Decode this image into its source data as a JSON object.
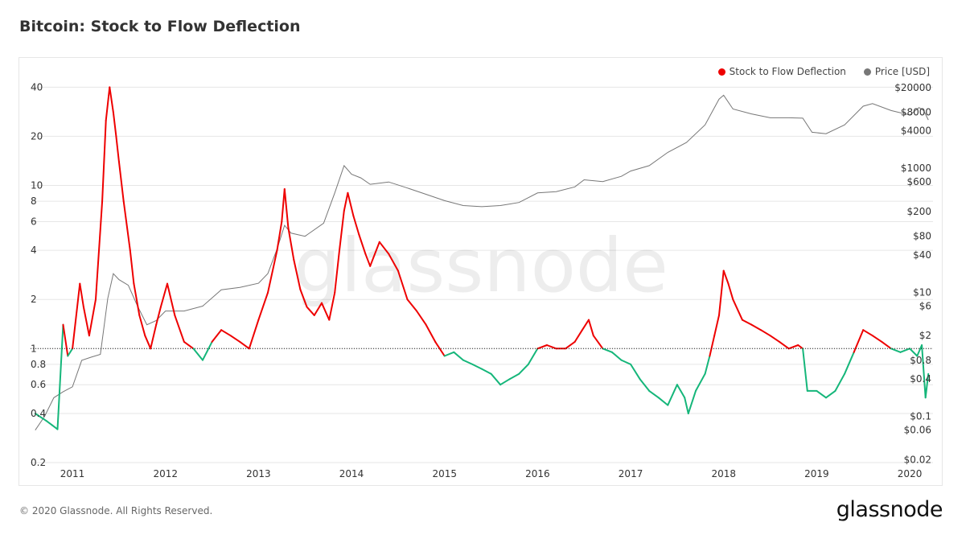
{
  "page": {
    "title": "Bitcoin: Stock to Flow Deflection",
    "footer": "© 2020 Glassnode. All Rights Reserved.",
    "logo": "glassnode",
    "watermark": "glassnode"
  },
  "legend": [
    {
      "label": "Stock to Flow Deflection",
      "color": "#ee0000"
    },
    {
      "label": "Price [USD]",
      "color": "#777777"
    }
  ],
  "chart_data": {
    "type": "line",
    "title": "Bitcoin: Stock to Flow Deflection",
    "x_ticks": [
      "2011",
      "2012",
      "2013",
      "2014",
      "2015",
      "2016",
      "2017",
      "2018",
      "2019",
      "2020"
    ],
    "y_left": {
      "scale": "log",
      "ticks": [
        "40",
        "20",
        "10",
        "8",
        "6",
        "4",
        "2",
        "1",
        "0.8",
        "0.6",
        "0.4",
        "0.2"
      ],
      "values": [
        40,
        20,
        10,
        8,
        6,
        4,
        2,
        1,
        0.8,
        0.6,
        0.4,
        0.2
      ]
    },
    "y_right": {
      "scale": "log",
      "ticks": [
        "$20000",
        "$8000",
        "$4000",
        "$1000",
        "$600",
        "$200",
        "$80",
        "$40",
        "$10",
        "$6",
        "$2",
        "$0.8",
        "$0.4",
        "$0.1",
        "$0.06",
        "$0.02"
      ],
      "values": [
        20000,
        8000,
        4000,
        1000,
        600,
        200,
        80,
        40,
        10,
        6,
        2,
        0.8,
        0.4,
        0.1,
        0.06,
        0.02
      ]
    },
    "reference_line": 1,
    "colors": {
      "above": "#ee0000",
      "below": "#15b67a",
      "price": "#777777",
      "grid": "#e6e6e6"
    },
    "series": [
      {
        "name": "Stock to Flow Deflection",
        "x": [
          2010.6,
          2010.72,
          2010.78,
          2010.84,
          2010.9,
          2010.95,
          2011.0,
          2011.08,
          2011.12,
          2011.18,
          2011.25,
          2011.32,
          2011.36,
          2011.4,
          2011.44,
          2011.47,
          2011.5,
          2011.55,
          2011.62,
          2011.66,
          2011.72,
          2011.78,
          2011.84,
          2011.9,
          2011.95,
          2012.02,
          2012.1,
          2012.2,
          2012.3,
          2012.4,
          2012.5,
          2012.6,
          2012.7,
          2012.8,
          2012.9,
          2013.0,
          2013.1,
          2013.2,
          2013.25,
          2013.28,
          2013.32,
          2013.38,
          2013.45,
          2013.52,
          2013.6,
          2013.68,
          2013.76,
          2013.82,
          2013.87,
          2013.92,
          2013.96,
          2014.02,
          2014.08,
          2014.15,
          2014.2,
          2014.3,
          2014.4,
          2014.5,
          2014.6,
          2014.7,
          2014.8,
          2014.9,
          2015.0,
          2015.1,
          2015.2,
          2015.3,
          2015.4,
          2015.5,
          2015.6,
          2015.7,
          2015.8,
          2015.9,
          2016.0,
          2016.1,
          2016.2,
          2016.3,
          2016.4,
          2016.48,
          2016.55,
          2016.6,
          2016.7,
          2016.8,
          2016.9,
          2017.0,
          2017.1,
          2017.2,
          2017.3,
          2017.4,
          2017.5,
          2017.58,
          2017.62,
          2017.7,
          2017.8,
          2017.85,
          2017.9,
          2017.95,
          2018.0,
          2018.05,
          2018.1,
          2018.2,
          2018.3,
          2018.4,
          2018.5,
          2018.6,
          2018.7,
          2018.8,
          2018.85,
          2018.9,
          2019.0,
          2019.1,
          2019.2,
          2019.3,
          2019.4,
          2019.5,
          2019.6,
          2019.7,
          2019.8,
          2019.9,
          2020.0,
          2020.08,
          2020.13,
          2020.17,
          2020.2
        ],
        "values": [
          0.4,
          0.36,
          0.34,
          0.32,
          1.4,
          0.9,
          1.0,
          2.5,
          1.8,
          1.2,
          2.0,
          8.0,
          25.0,
          40.0,
          28.0,
          20.0,
          14.0,
          8.0,
          4.0,
          2.5,
          1.6,
          1.2,
          1.0,
          1.4,
          1.8,
          2.5,
          1.6,
          1.1,
          1.0,
          0.85,
          1.1,
          1.3,
          1.2,
          1.1,
          1.0,
          1.5,
          2.2,
          4.0,
          6.0,
          9.5,
          5.5,
          3.5,
          2.3,
          1.8,
          1.6,
          1.9,
          1.5,
          2.2,
          4.0,
          7.0,
          9.0,
          6.5,
          5.0,
          3.8,
          3.2,
          4.5,
          3.8,
          3.0,
          2.0,
          1.7,
          1.4,
          1.1,
          0.9,
          0.95,
          0.85,
          0.8,
          0.75,
          0.7,
          0.6,
          0.65,
          0.7,
          0.8,
          1.0,
          1.05,
          1.0,
          1.0,
          1.1,
          1.3,
          1.5,
          1.2,
          1.0,
          0.95,
          0.85,
          0.8,
          0.65,
          0.55,
          0.5,
          0.45,
          0.6,
          0.5,
          0.4,
          0.55,
          0.7,
          0.9,
          1.2,
          1.6,
          3.0,
          2.5,
          2.0,
          1.5,
          1.4,
          1.3,
          1.2,
          1.1,
          1.0,
          1.05,
          1.0,
          0.55,
          0.55,
          0.5,
          0.55,
          0.7,
          0.95,
          1.3,
          1.2,
          1.1,
          1.0,
          0.95,
          1.0,
          0.9,
          1.05,
          0.5,
          0.7
        ]
      },
      {
        "name": "Price [USD]",
        "x": [
          2010.6,
          2010.7,
          2010.8,
          2010.9,
          2011.0,
          2011.1,
          2011.2,
          2011.3,
          2011.38,
          2011.44,
          2011.5,
          2011.6,
          2011.7,
          2011.8,
          2011.9,
          2012.0,
          2012.2,
          2012.4,
          2012.6,
          2012.8,
          2013.0,
          2013.1,
          2013.2,
          2013.28,
          2013.35,
          2013.5,
          2013.7,
          2013.82,
          2013.92,
          2014.0,
          2014.1,
          2014.2,
          2014.4,
          2014.6,
          2014.8,
          2015.0,
          2015.2,
          2015.4,
          2015.6,
          2015.8,
          2016.0,
          2016.2,
          2016.4,
          2016.5,
          2016.7,
          2016.9,
          2017.0,
          2017.2,
          2017.4,
          2017.6,
          2017.8,
          2017.95,
          2018.0,
          2018.1,
          2018.3,
          2018.5,
          2018.7,
          2018.85,
          2018.95,
          2019.1,
          2019.3,
          2019.5,
          2019.6,
          2019.8,
          2020.0,
          2020.1,
          2020.15,
          2020.2
        ],
        "values": [
          0.06,
          0.1,
          0.2,
          0.25,
          0.3,
          0.8,
          0.9,
          1.0,
          8.0,
          20.0,
          16.0,
          13.0,
          6.0,
          3.0,
          3.5,
          5.0,
          5.0,
          6.0,
          11.0,
          12.0,
          14.0,
          20.0,
          50.0,
          120.0,
          90.0,
          80.0,
          130.0,
          400.0,
          1100.0,
          800.0,
          700.0,
          550.0,
          600.0,
          480.0,
          380.0,
          300.0,
          250.0,
          240.0,
          250.0,
          280.0,
          400.0,
          420.0,
          500.0,
          650.0,
          610.0,
          740.0,
          900.0,
          1100.0,
          1800.0,
          2600.0,
          5000.0,
          13000.0,
          15000.0,
          9000.0,
          7500.0,
          6500.0,
          6500.0,
          6400.0,
          3800.0,
          3600.0,
          5000.0,
          10000.0,
          11000.0,
          8500.0,
          7200.0,
          9500.0,
          8500.0,
          6000.0
        ]
      }
    ]
  }
}
